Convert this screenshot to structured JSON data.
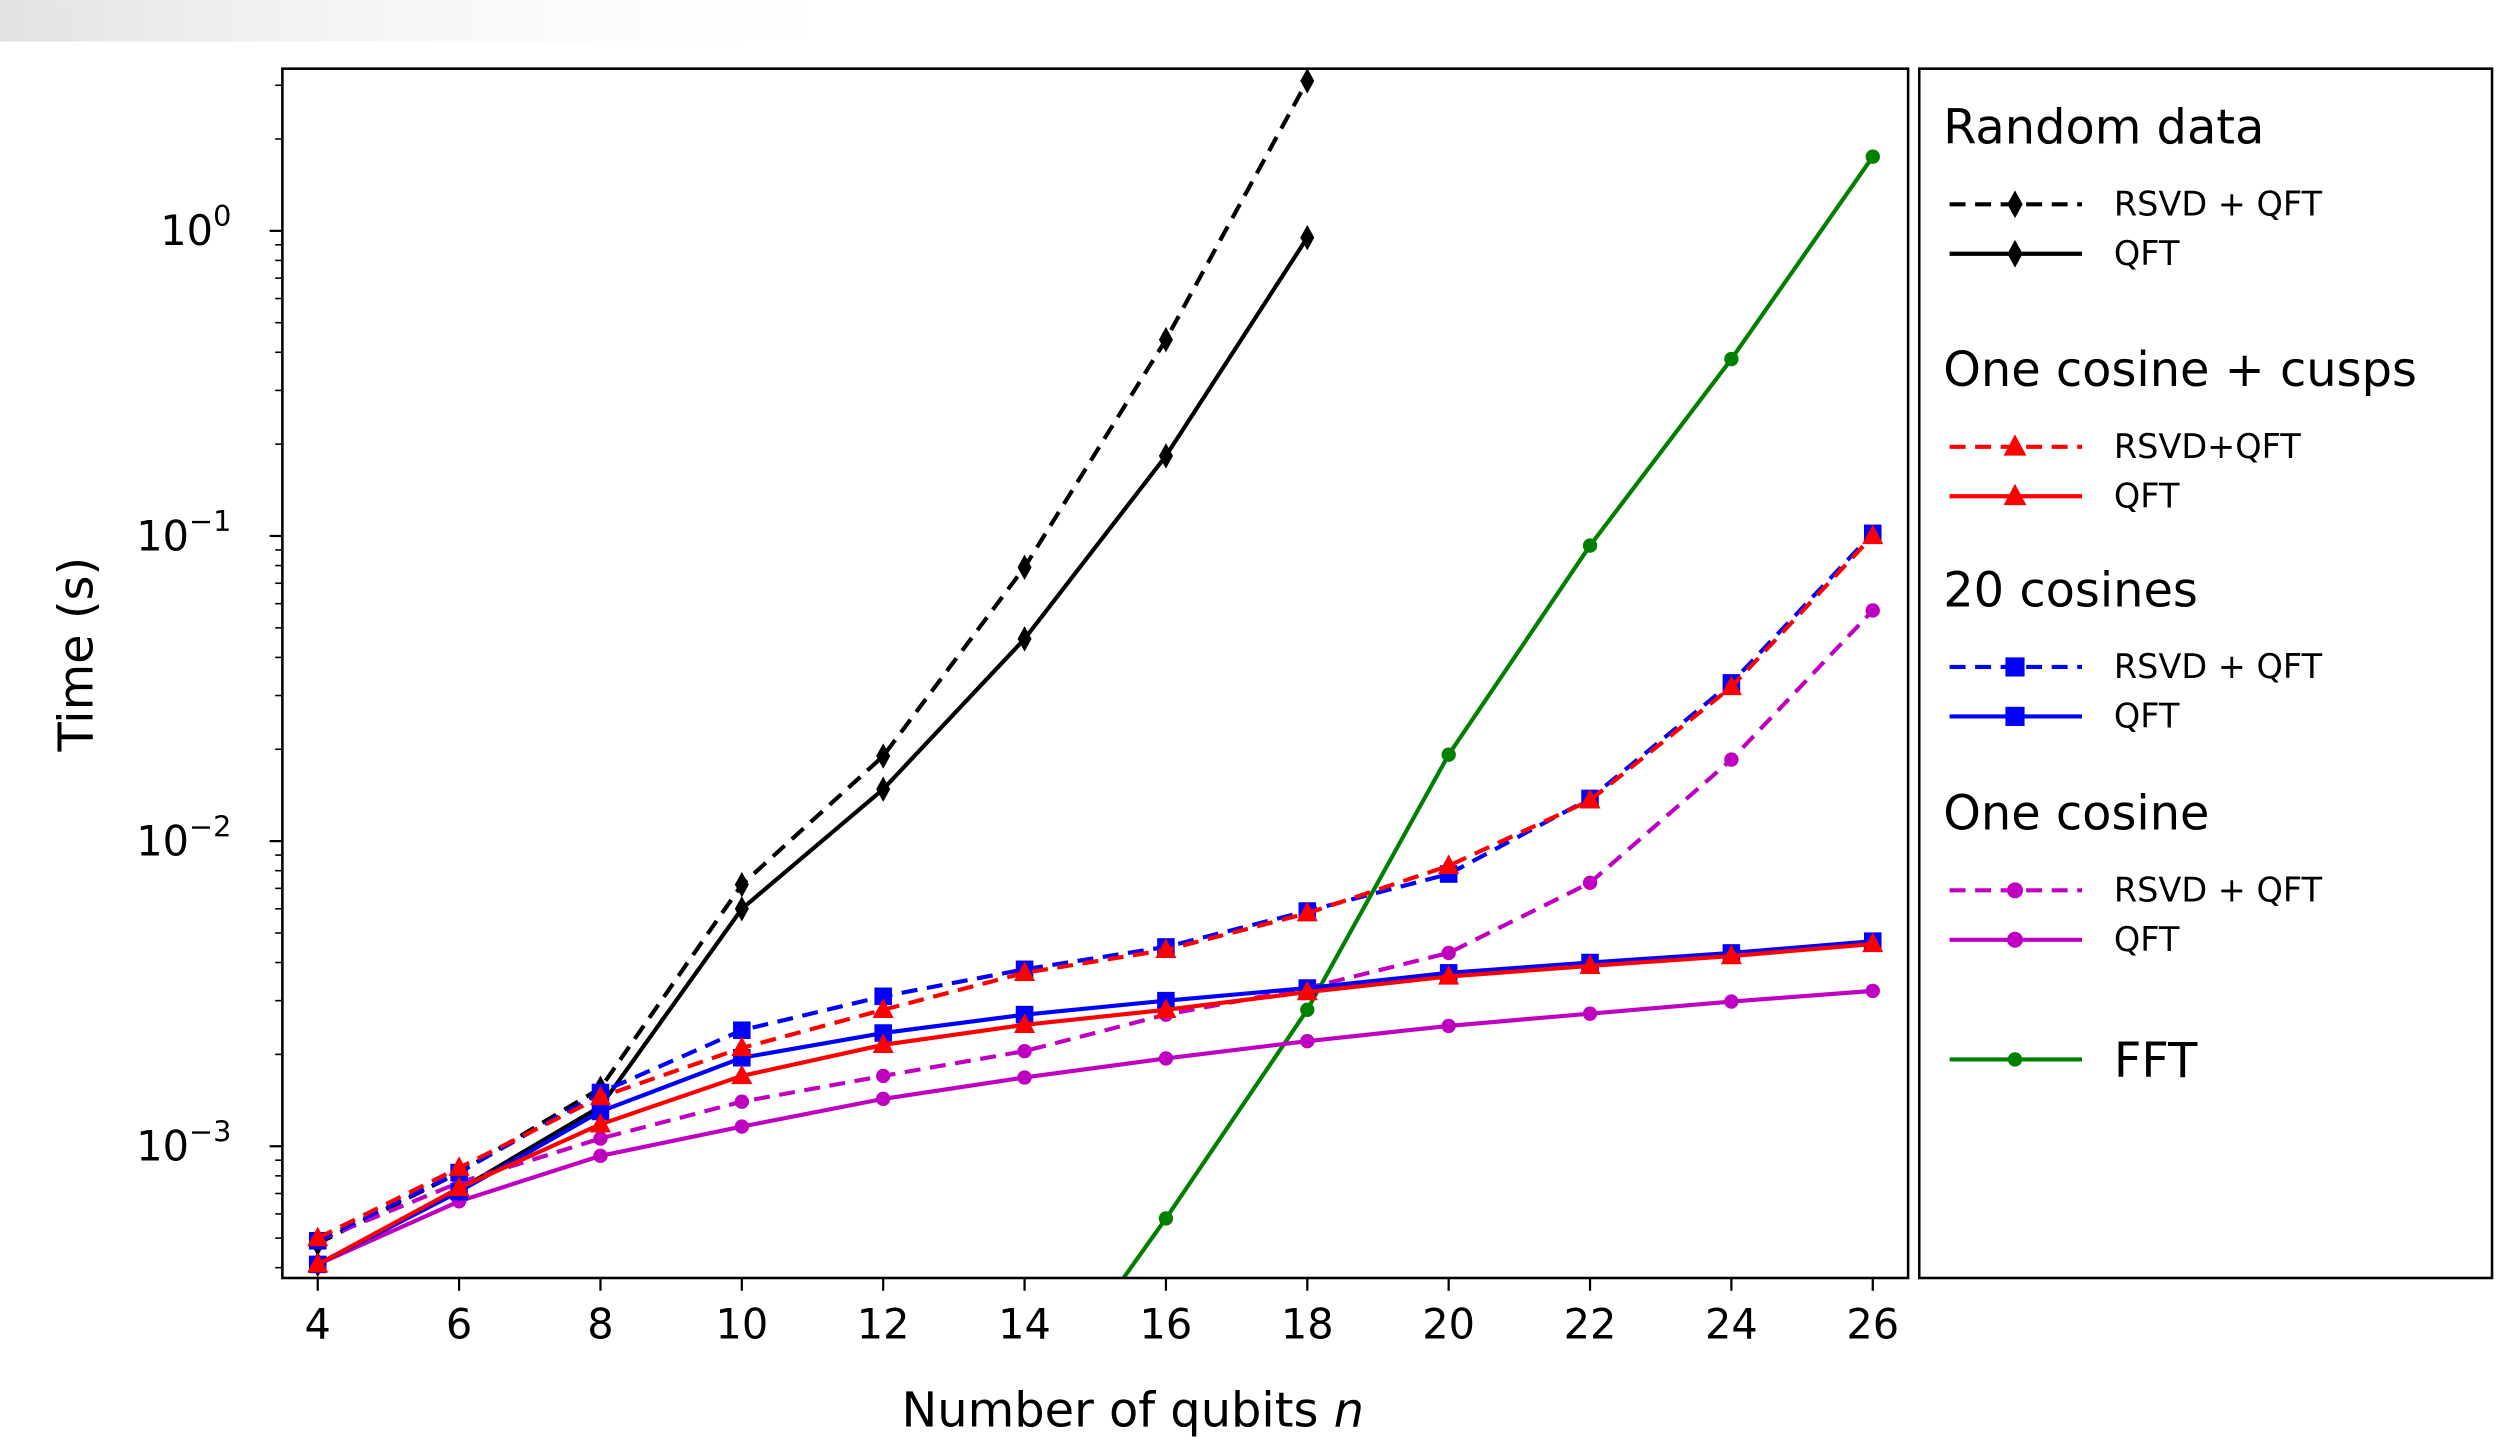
{
  "chart_data": {
    "type": "line",
    "xlabel": "Number of qubits",
    "xlabel_var": "n",
    "ylabel": "Time (s)",
    "y_scale": "log",
    "xlim": [
      3.5,
      26.5
    ],
    "ylim": [
      0.00037,
      3.4
    ],
    "x_ticks": [
      4,
      6,
      8,
      10,
      12,
      14,
      16,
      18,
      20,
      22,
      24,
      26
    ],
    "y_ticks": [
      {
        "value": 0.001,
        "base": "10",
        "exp": "−3"
      },
      {
        "value": 0.01,
        "base": "10",
        "exp": "−2"
      },
      {
        "value": 0.1,
        "base": "10",
        "exp": "−1"
      },
      {
        "value": 1,
        "base": "10",
        "exp": "0"
      }
    ],
    "grid": false,
    "legend_position": "outside-right",
    "legend_groups": [
      {
        "title": "Random data",
        "series_ids": [
          "rand_rsvd",
          "rand_qft"
        ]
      },
      {
        "title": "One cosine + cusps",
        "series_ids": [
          "cusp_rsvd",
          "cusp_qft"
        ]
      },
      {
        "title": "20 cosines",
        "series_ids": [
          "cos20_rsvd",
          "cos20_qft"
        ]
      },
      {
        "title": "One cosine",
        "series_ids": [
          "cos1_rsvd",
          "cos1_qft"
        ]
      },
      {
        "title": "",
        "series_ids": [
          "fft"
        ]
      }
    ],
    "series": [
      {
        "id": "rand_rsvd",
        "name": "RSVD + QFT",
        "color": "#000000",
        "dash": true,
        "marker": "diamond",
        "x": [
          4,
          6,
          8,
          10,
          12,
          14,
          16,
          18
        ],
        "y": [
          0.00048,
          0.00082,
          0.00155,
          0.0072,
          0.019,
          0.079,
          0.44,
          3.1
        ]
      },
      {
        "id": "rand_qft",
        "name": "QFT",
        "color": "#000000",
        "dash": false,
        "marker": "diamond",
        "x": [
          4,
          6,
          8,
          10,
          12,
          14,
          16,
          18
        ],
        "y": [
          0.00041,
          0.00072,
          0.00135,
          0.006,
          0.0148,
          0.046,
          0.183,
          0.95
        ]
      },
      {
        "id": "fft",
        "name": "FFT",
        "color": "#008000",
        "dash": false,
        "marker": "circle",
        "legend_large": true,
        "x": [
          15.4,
          16,
          18,
          20,
          22,
          24,
          26
        ],
        "y": [
          0.00037,
          0.00058,
          0.0028,
          0.0192,
          0.093,
          0.38,
          1.75
        ]
      },
      {
        "id": "cos1_rsvd",
        "name": "RSVD + QFT",
        "color": "#c000c0",
        "dash": true,
        "marker": "circle",
        "x": [
          4,
          6,
          8,
          10,
          12,
          14,
          16,
          18,
          20,
          22,
          24,
          26
        ],
        "y": [
          0.00049,
          0.00076,
          0.00106,
          0.0014,
          0.0017,
          0.00205,
          0.0027,
          0.0033,
          0.0043,
          0.0073,
          0.0185,
          0.057
        ]
      },
      {
        "id": "cos1_qft",
        "name": "QFT",
        "color": "#c000c0",
        "dash": false,
        "marker": "circle",
        "x": [
          4,
          6,
          8,
          10,
          12,
          14,
          16,
          18,
          20,
          22,
          24,
          26
        ],
        "y": [
          0.00041,
          0.00066,
          0.00093,
          0.00116,
          0.00143,
          0.00168,
          0.00194,
          0.00221,
          0.00248,
          0.00272,
          0.00298,
          0.00323
        ]
      },
      {
        "id": "cos20_rsvd",
        "name": "RSVD + QFT",
        "color": "#0000ff",
        "dash": true,
        "marker": "square",
        "x": [
          4,
          6,
          8,
          10,
          12,
          14,
          16,
          18,
          20,
          22,
          24,
          26
        ],
        "y": [
          0.00049,
          0.00082,
          0.0015,
          0.0024,
          0.0031,
          0.0038,
          0.0045,
          0.0059,
          0.0078,
          0.0138,
          0.033,
          0.102
        ]
      },
      {
        "id": "cos20_qft",
        "name": "QFT",
        "color": "#0000ff",
        "dash": false,
        "marker": "square",
        "x": [
          4,
          6,
          8,
          10,
          12,
          14,
          16,
          18,
          20,
          22,
          24,
          26
        ],
        "y": [
          0.00041,
          0.00071,
          0.0013,
          0.00195,
          0.00235,
          0.0027,
          0.003,
          0.0033,
          0.0037,
          0.004,
          0.0043,
          0.0047
        ]
      },
      {
        "id": "cusp_rsvd",
        "name": "RSVD+QFT",
        "color": "#ff0000",
        "dash": true,
        "marker": "triangle",
        "x": [
          4,
          6,
          8,
          10,
          12,
          14,
          16,
          18,
          20,
          22,
          24,
          26
        ],
        "y": [
          0.0005,
          0.00085,
          0.00145,
          0.0021,
          0.0028,
          0.0037,
          0.0044,
          0.0058,
          0.0083,
          0.0136,
          0.032,
          0.1
        ]
      },
      {
        "id": "cusp_qft",
        "name": "QFT",
        "color": "#ff0000",
        "dash": false,
        "marker": "triangle",
        "x": [
          4,
          6,
          8,
          10,
          12,
          14,
          16,
          18,
          20,
          22,
          24,
          26
        ],
        "y": [
          0.00041,
          0.00073,
          0.00118,
          0.0017,
          0.00215,
          0.0025,
          0.0028,
          0.0032,
          0.0036,
          0.0039,
          0.0042,
          0.0046
        ]
      }
    ]
  }
}
